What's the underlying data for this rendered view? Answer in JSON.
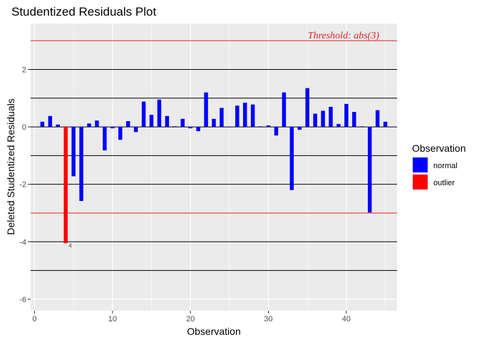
{
  "chart_data": {
    "type": "bar",
    "title": "Studentized Residuals Plot",
    "xlabel": "Observation",
    "ylabel": "Deleted Studentized Residuals",
    "xlim": [
      -0.5,
      46.5
    ],
    "ylim": [
      -6.4,
      3.6
    ],
    "x_ticks": [
      0,
      10,
      20,
      30,
      40
    ],
    "y_ticks": [
      -6,
      -4,
      -2,
      0,
      2
    ],
    "y_tick_labels": [
      "-6",
      "-4",
      "-2",
      "0",
      "2"
    ],
    "hlines_black": [
      -5,
      -4,
      -2,
      -1,
      0,
      1,
      2
    ],
    "threshold": 3,
    "threshold_color": "#e32222",
    "threshold_label": "Threshold: abs(3)",
    "grid": true,
    "legend": {
      "title": "Observation",
      "position": "right",
      "entries": [
        {
          "name": "normal",
          "color": "#0000ff"
        },
        {
          "name": "outlier",
          "color": "#ff0000"
        }
      ]
    },
    "x": [
      1,
      2,
      3,
      4,
      5,
      6,
      7,
      8,
      9,
      10,
      11,
      12,
      13,
      14,
      15,
      16,
      17,
      18,
      19,
      20,
      21,
      22,
      23,
      24,
      25,
      26,
      27,
      28,
      29,
      30,
      31,
      32,
      33,
      34,
      35,
      36,
      37,
      38,
      39,
      40,
      41,
      42,
      43,
      44,
      45
    ],
    "values": [
      0.18,
      0.38,
      0.08,
      -4.05,
      -1.72,
      -2.58,
      0.12,
      0.22,
      -0.82,
      -0.05,
      -0.45,
      0.2,
      -0.18,
      0.88,
      0.42,
      0.95,
      0.38,
      0.02,
      0.28,
      -0.05,
      -0.15,
      1.2,
      0.28,
      0.66,
      0.0,
      0.74,
      0.84,
      0.78,
      0.02,
      0.05,
      -0.3,
      1.2,
      -2.2,
      -0.1,
      1.35,
      0.46,
      0.56,
      0.7,
      0.1,
      0.8,
      0.52,
      0.02,
      -2.98,
      0.58,
      0.18
    ],
    "outlier_index": [
      4
    ],
    "point_labels": [
      {
        "x": 4,
        "label": "4"
      }
    ]
  }
}
